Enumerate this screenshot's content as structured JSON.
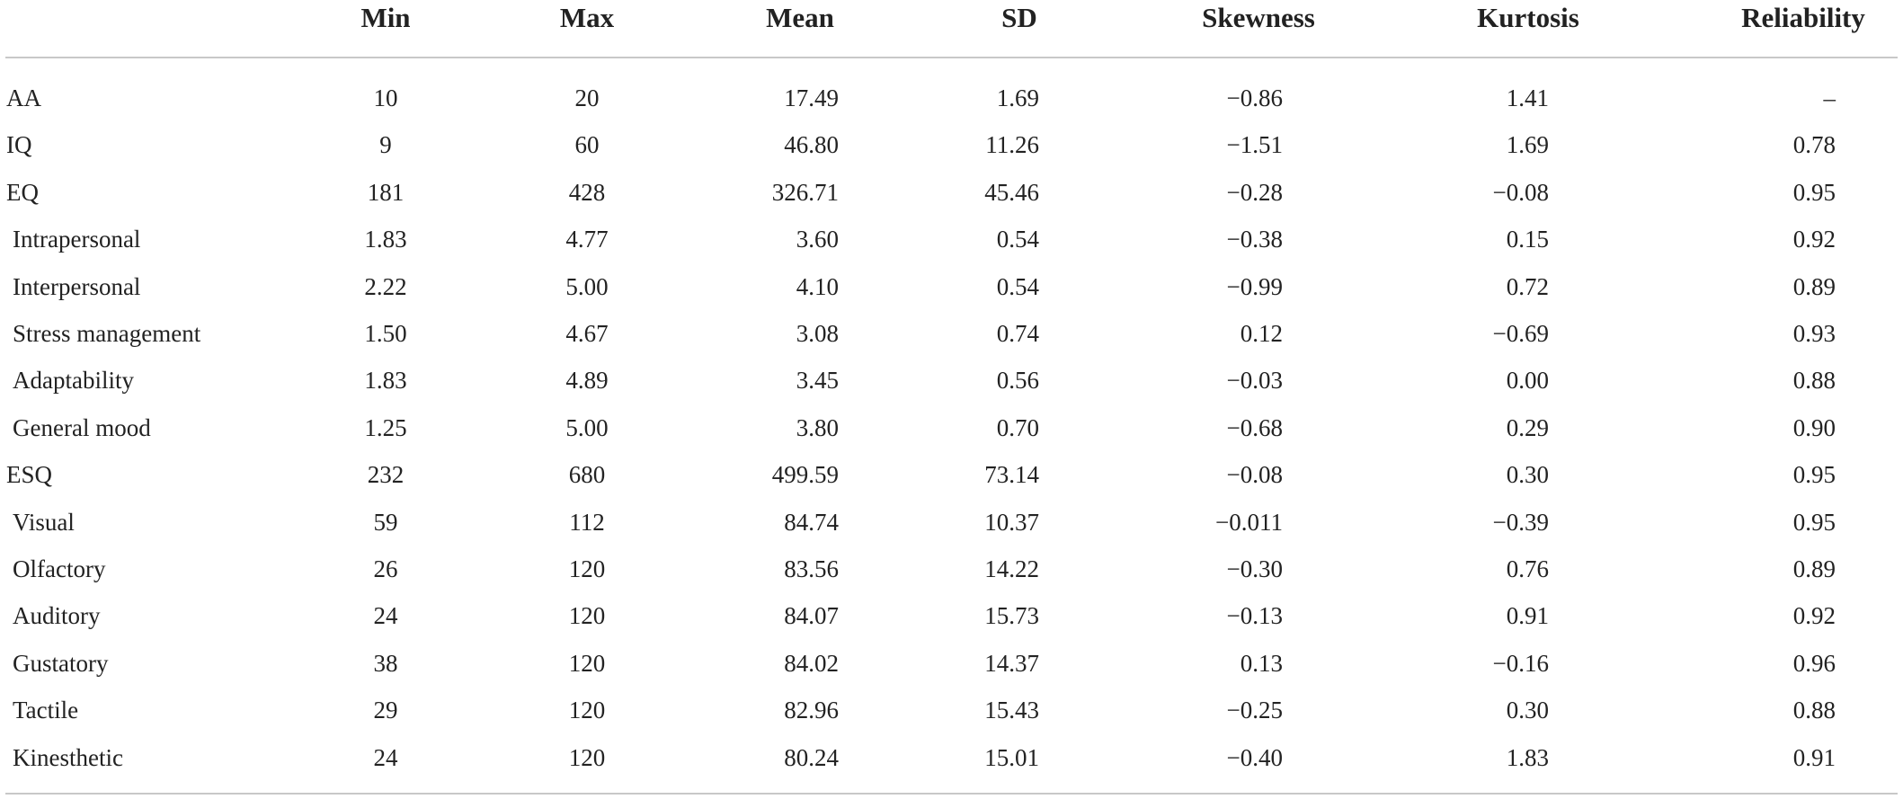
{
  "table": {
    "columns": [
      "",
      "Min",
      "Max",
      "Mean",
      "SD",
      "Skewness",
      "Kurtosis",
      "Reliability"
    ],
    "rows": [
      [
        "AA",
        "10",
        "20",
        "17.49",
        "1.69",
        "−0.86",
        "1.41",
        "–"
      ],
      [
        "IQ",
        "9",
        "60",
        "46.80",
        "11.26",
        "−1.51",
        "1.69",
        "0.78"
      ],
      [
        "EQ",
        "181",
        "428",
        "326.71",
        "45.46",
        "−0.28",
        "−0.08",
        "0.95"
      ],
      [
        "Intrapersonal",
        "1.83",
        "4.77",
        "3.60",
        "0.54",
        "−0.38",
        "0.15",
        "0.92"
      ],
      [
        "Interpersonal",
        "2.22",
        "5.00",
        "4.10",
        "0.54",
        "−0.99",
        "0.72",
        "0.89"
      ],
      [
        "Stress management",
        "1.50",
        "4.67",
        "3.08",
        "0.74",
        "0.12",
        "−0.69",
        "0.93"
      ],
      [
        "Adaptability",
        "1.83",
        "4.89",
        "3.45",
        "0.56",
        "−0.03",
        "0.00",
        "0.88"
      ],
      [
        "General mood",
        "1.25",
        "5.00",
        "3.80",
        "0.70",
        "−0.68",
        "0.29",
        "0.90"
      ],
      [
        "ESQ",
        "232",
        "680",
        "499.59",
        "73.14",
        "−0.08",
        "0.30",
        "0.95"
      ],
      [
        "Visual",
        "59",
        "112",
        "84.74",
        "10.37",
        "−0.011",
        "−0.39",
        "0.95"
      ],
      [
        "Olfactory",
        "26",
        "120",
        "83.56",
        "14.22",
        "−0.30",
        "0.76",
        "0.89"
      ],
      [
        "Auditory",
        "24",
        "120",
        "84.07",
        "15.73",
        "−0.13",
        "0.91",
        "0.92"
      ],
      [
        "Gustatory",
        "38",
        "120",
        "84.02",
        "14.37",
        "0.13",
        "−0.16",
        "0.96"
      ],
      [
        "Tactile",
        "29",
        "120",
        "82.96",
        "15.43",
        "−0.25",
        "0.30",
        "0.88"
      ],
      [
        "Kinesthetic",
        "24",
        "120",
        "80.24",
        "15.01",
        "−0.40",
        "1.83",
        "0.91"
      ]
    ]
  }
}
